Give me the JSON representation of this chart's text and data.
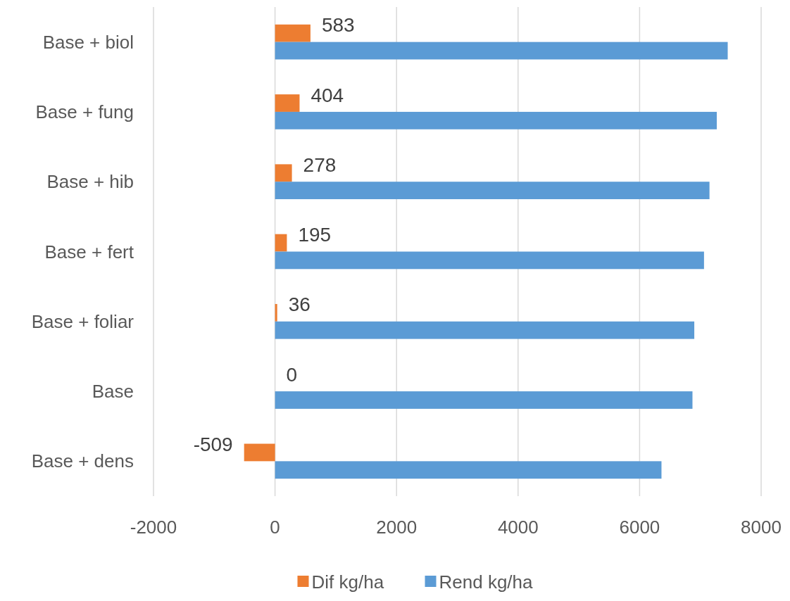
{
  "chart_data": {
    "type": "bar",
    "orientation": "horizontal",
    "categories": [
      "Base + biol",
      "Base + fung",
      "Base + hib",
      "Base + fert",
      "Base + foliar",
      "Base",
      "Base + dens"
    ],
    "series": [
      {
        "name": "Dif kg/ha",
        "color": "#ed7d31",
        "values": [
          583,
          404,
          278,
          195,
          36,
          0,
          -509
        ],
        "value_labels": [
          "583",
          "404",
          "278",
          "195",
          "36",
          "0",
          "-509"
        ]
      },
      {
        "name": "Rend kg/ha",
        "color": "#5b9bd5",
        "values": [
          7450,
          7270,
          7150,
          7060,
          6900,
          6870,
          6360
        ]
      }
    ],
    "xlim": [
      -2000,
      8000
    ],
    "xticks": [
      -2000,
      0,
      2000,
      4000,
      6000,
      8000
    ],
    "grid": "x",
    "legend": "bottom"
  }
}
